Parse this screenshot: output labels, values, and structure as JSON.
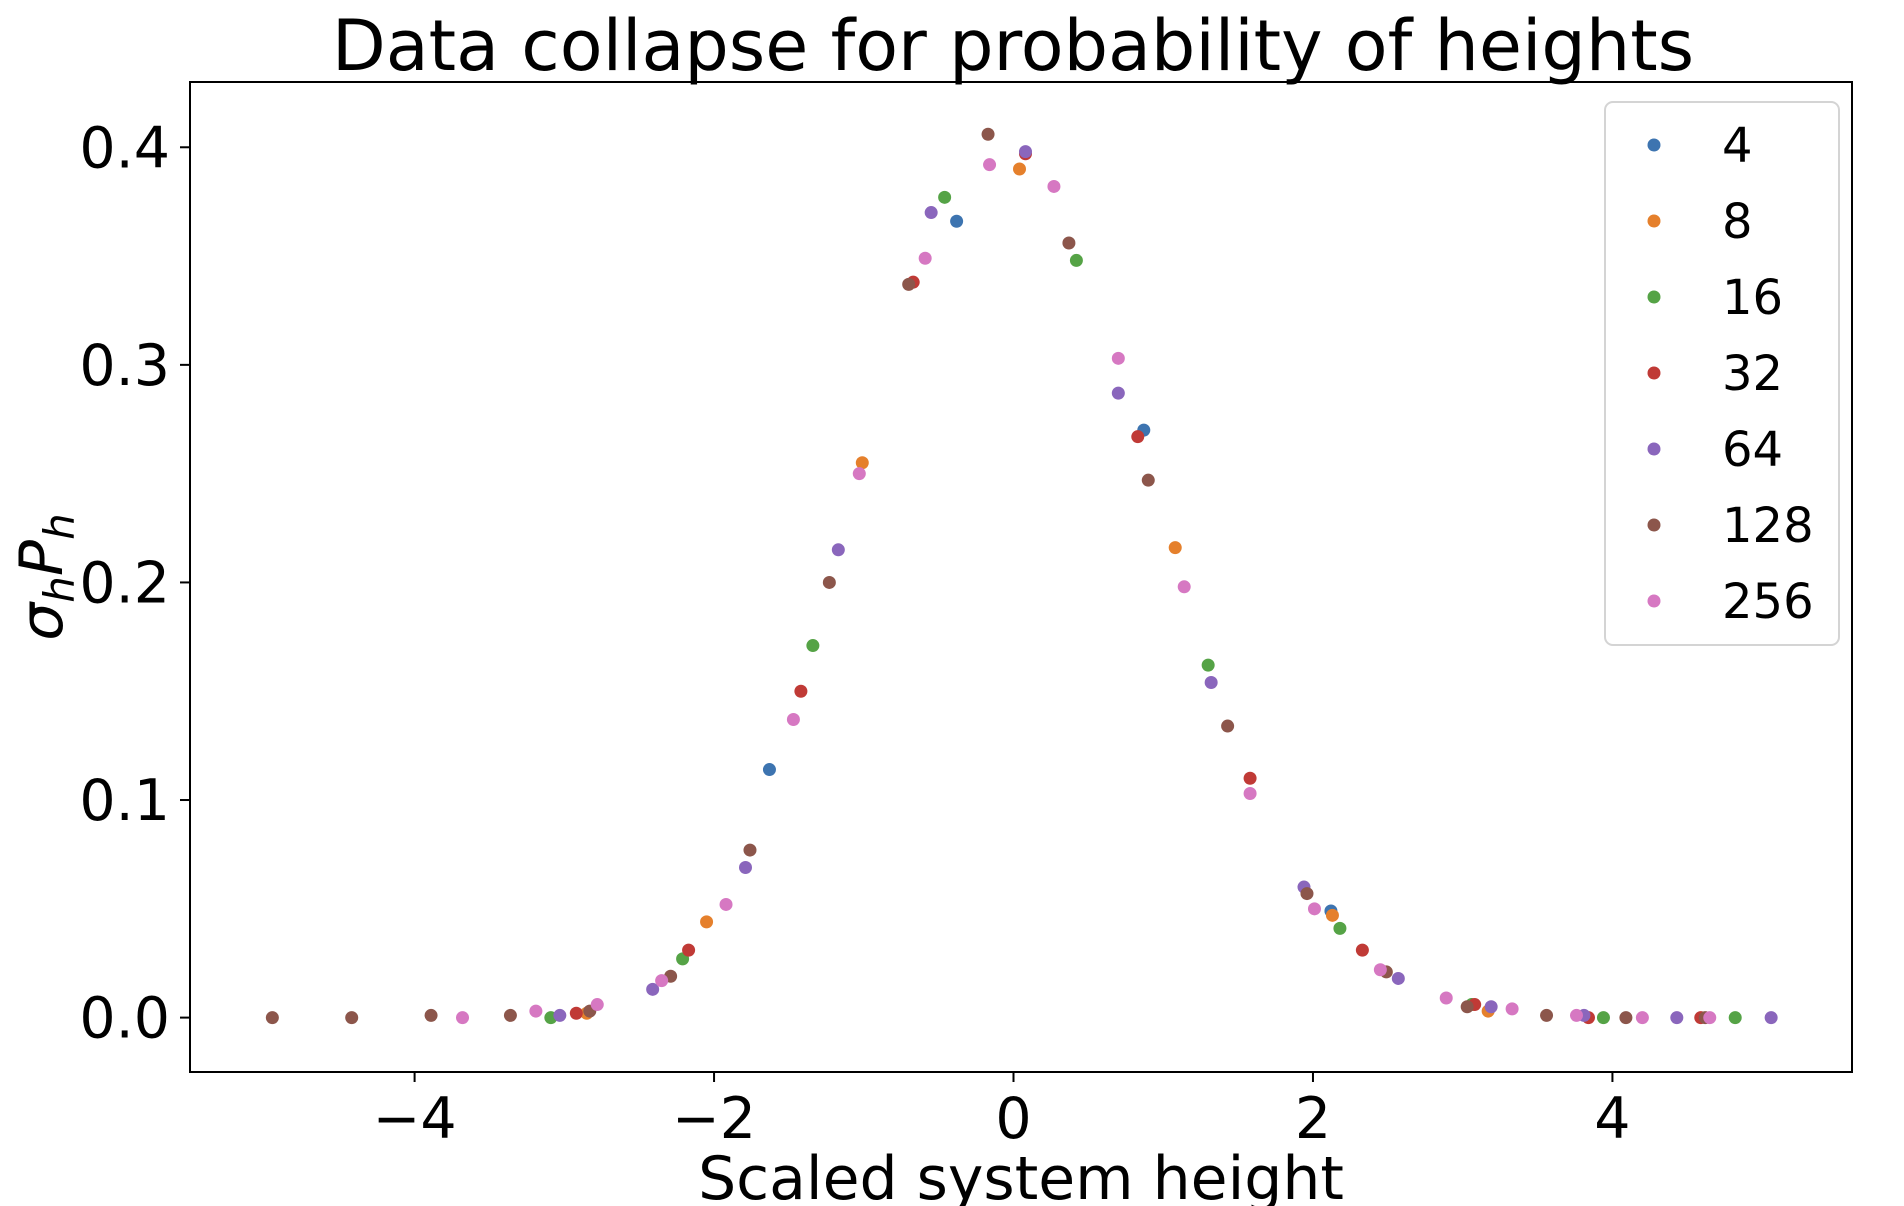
{
  "chart_data": {
    "type": "scatter",
    "title": "Data collapse for probability of heights",
    "xlabel": "Scaled system height",
    "ylabel_main": "σ",
    "ylabel_sub1": "h",
    "ylabel_mid": "P",
    "ylabel_sub2": "h",
    "xlim": [
      -5.5,
      5.6
    ],
    "ylim": [
      -0.025,
      0.43
    ],
    "xticks": [
      -4,
      -2,
      0,
      2,
      4
    ],
    "xtick_labels": [
      "−4",
      "−2",
      "0",
      "2",
      "4"
    ],
    "yticks": [
      0.0,
      0.1,
      0.2,
      0.3,
      0.4
    ],
    "ytick_labels": [
      "0.0",
      "0.1",
      "0.2",
      "0.3",
      "0.4"
    ],
    "grid": false,
    "legend_position": "top-right",
    "series": [
      {
        "name": "4",
        "color": "#3d74b0",
        "points": [
          [
            -1.63,
            0.114
          ],
          [
            -0.38,
            0.366
          ],
          [
            0.87,
            0.27
          ],
          [
            2.12,
            0.049
          ]
        ]
      },
      {
        "name": "8",
        "color": "#e5802c",
        "points": [
          [
            -2.85,
            0.002
          ],
          [
            -2.05,
            0.044
          ],
          [
            -1.01,
            0.255
          ],
          [
            0.04,
            0.39
          ],
          [
            1.08,
            0.216
          ],
          [
            2.13,
            0.047
          ],
          [
            3.17,
            0.003
          ]
        ]
      },
      {
        "name": "16",
        "color": "#55a346",
        "points": [
          [
            -3.09,
            0.0
          ],
          [
            -2.21,
            0.027
          ],
          [
            -1.34,
            0.171
          ],
          [
            -0.46,
            0.377
          ],
          [
            0.42,
            0.348
          ],
          [
            1.3,
            0.162
          ],
          [
            2.18,
            0.041
          ],
          [
            3.06,
            0.006
          ],
          [
            3.94,
            0.0
          ],
          [
            4.82,
            0.0
          ]
        ]
      },
      {
        "name": "32",
        "color": "#c03a36",
        "points": [
          [
            -2.92,
            0.002
          ],
          [
            -2.17,
            0.031
          ],
          [
            -1.42,
            0.15
          ],
          [
            -0.67,
            0.338
          ],
          [
            0.08,
            0.397
          ],
          [
            0.83,
            0.267
          ],
          [
            1.58,
            0.11
          ],
          [
            2.33,
            0.031
          ],
          [
            3.08,
            0.006
          ],
          [
            3.84,
            0.0
          ],
          [
            4.59,
            0.0
          ]
        ]
      },
      {
        "name": "64",
        "color": "#8a66bc",
        "points": [
          [
            -3.03,
            0.001
          ],
          [
            -2.41,
            0.013
          ],
          [
            -1.79,
            0.069
          ],
          [
            -1.17,
            0.215
          ],
          [
            -0.55,
            0.37
          ],
          [
            0.08,
            0.398
          ],
          [
            0.7,
            0.287
          ],
          [
            1.32,
            0.154
          ],
          [
            1.94,
            0.06
          ],
          [
            2.57,
            0.018
          ],
          [
            3.19,
            0.005
          ],
          [
            3.81,
            0.001
          ],
          [
            4.43,
            0.0
          ],
          [
            5.06,
            0.0
          ]
        ]
      },
      {
        "name": "128",
        "color": "#8c564b",
        "points": [
          [
            -4.95,
            0.0
          ],
          [
            -4.42,
            0.0
          ],
          [
            -3.89,
            0.001
          ],
          [
            -3.36,
            0.001
          ],
          [
            -2.83,
            0.003
          ],
          [
            -2.29,
            0.019
          ],
          [
            -1.76,
            0.077
          ],
          [
            -1.23,
            0.2
          ],
          [
            -0.7,
            0.337
          ],
          [
            -0.17,
            0.406
          ],
          [
            0.37,
            0.356
          ],
          [
            0.9,
            0.247
          ],
          [
            1.43,
            0.134
          ],
          [
            1.96,
            0.057
          ],
          [
            2.49,
            0.021
          ],
          [
            3.03,
            0.005
          ],
          [
            3.56,
            0.001
          ],
          [
            4.09,
            0.0
          ],
          [
            4.62,
            0.0
          ]
        ]
      },
      {
        "name": "256",
        "color": "#d678c2",
        "points": [
          [
            -3.68,
            0.0
          ],
          [
            -3.19,
            0.003
          ],
          [
            -2.78,
            0.006
          ],
          [
            -2.35,
            0.017
          ],
          [
            -1.92,
            0.052
          ],
          [
            -1.47,
            0.137
          ],
          [
            -1.03,
            0.25
          ],
          [
            -0.59,
            0.349
          ],
          [
            -0.16,
            0.392
          ],
          [
            0.27,
            0.382
          ],
          [
            0.7,
            0.303
          ],
          [
            1.14,
            0.198
          ],
          [
            1.58,
            0.103
          ],
          [
            2.01,
            0.05
          ],
          [
            2.45,
            0.022
          ],
          [
            2.89,
            0.009
          ],
          [
            3.33,
            0.004
          ],
          [
            3.76,
            0.001
          ],
          [
            4.2,
            0.0
          ],
          [
            4.65,
            0.0
          ]
        ]
      }
    ]
  }
}
